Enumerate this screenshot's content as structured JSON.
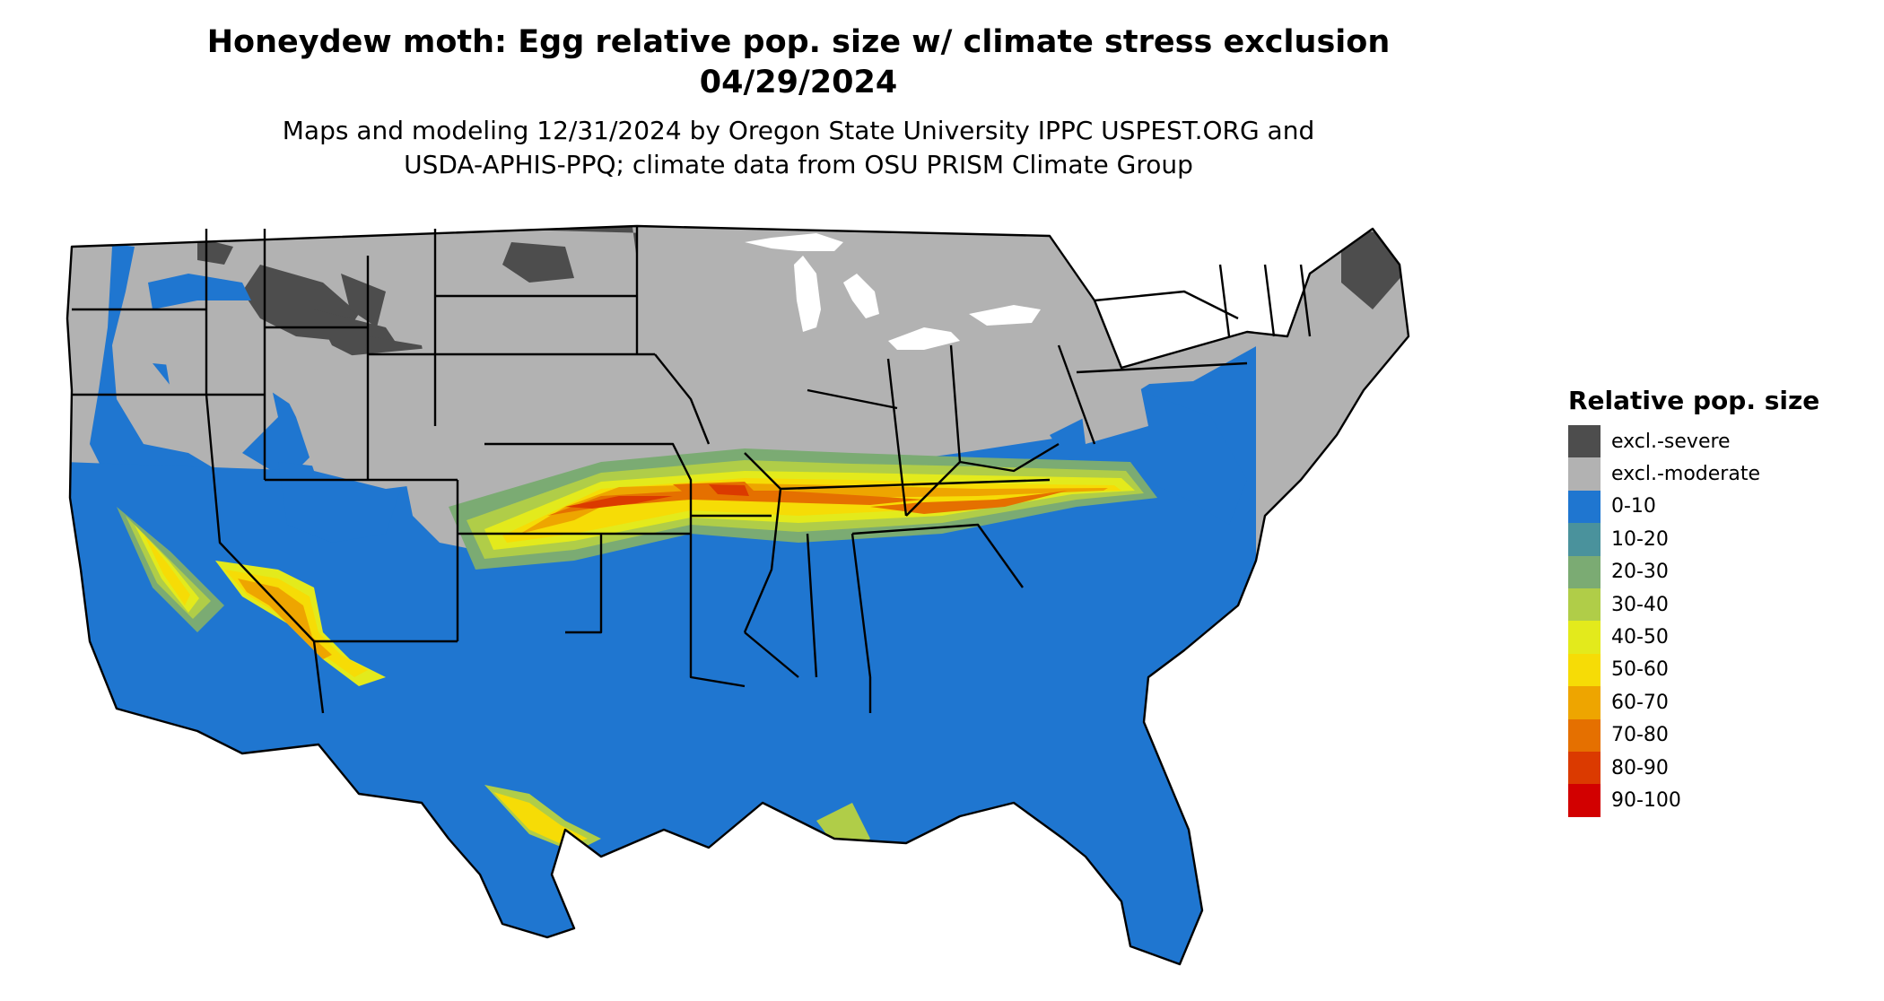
{
  "title_line1": "Honeydew moth: Egg relative pop. size w/ climate stress exclusion",
  "title_line2": "04/29/2024",
  "subtitle_line1": "Maps and modeling 12/31/2024 by Oregon State University IPPC USPEST.ORG and",
  "subtitle_line2": "USDA-APHIS-PPQ; climate data from OSU PRISM Climate Group",
  "legend": {
    "title": "Relative pop. size",
    "items": [
      {
        "label": "excl.-severe",
        "color": "#4d4d4d"
      },
      {
        "label": "excl.-moderate",
        "color": "#b2b2b2"
      },
      {
        "label": "0-10",
        "color": "#1f76d0"
      },
      {
        "label": "10-20",
        "color": "#4a929c"
      },
      {
        "label": "20-30",
        "color": "#7bab73"
      },
      {
        "label": "30-40",
        "color": "#b0cd48"
      },
      {
        "label": "40-50",
        "color": "#e3ea1c"
      },
      {
        "label": "50-60",
        "color": "#f6dc06"
      },
      {
        "label": "60-70",
        "color": "#eea500"
      },
      {
        "label": "70-80",
        "color": "#e57000"
      },
      {
        "label": "80-90",
        "color": "#db3a00"
      },
      {
        "label": "90-100",
        "color": "#d20000"
      }
    ]
  }
}
